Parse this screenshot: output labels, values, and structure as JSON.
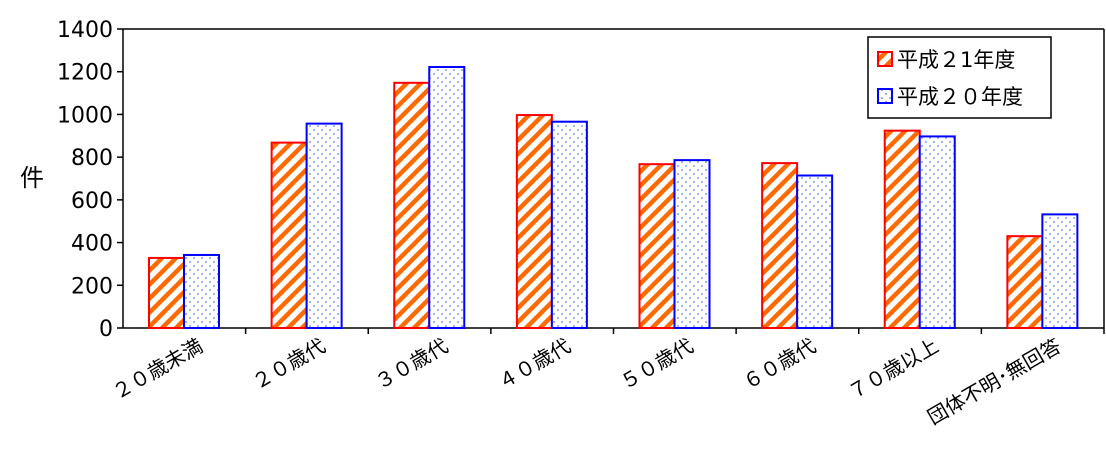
{
  "chart_data": {
    "type": "bar",
    "title": "",
    "xlabel": "",
    "ylabel": "件",
    "ylim": [
      0,
      1400
    ],
    "yticks": [
      0,
      200,
      400,
      600,
      800,
      1000,
      1200,
      1400
    ],
    "grid": false,
    "legend_position": "top-right",
    "categories": [
      "２０歳未満",
      "２０歳代",
      "３０歳代",
      "４０歳代",
      "５０歳代",
      "６０歳代",
      "７０歳以上",
      "団体不明･無回答"
    ],
    "series": [
      {
        "name": "平成２1年度",
        "pattern": "diagonal-stripe",
        "fill_color": "#ff6a00",
        "border_color": "#ff0000",
        "values": [
          328,
          868,
          1148,
          997,
          767,
          772,
          924,
          430
        ]
      },
      {
        "name": "平成２０年度",
        "pattern": "dotted",
        "fill_color": "#6699ff",
        "border_color": "#0000ff",
        "values": [
          342,
          957,
          1222,
          966,
          786,
          714,
          897,
          532
        ]
      }
    ]
  }
}
